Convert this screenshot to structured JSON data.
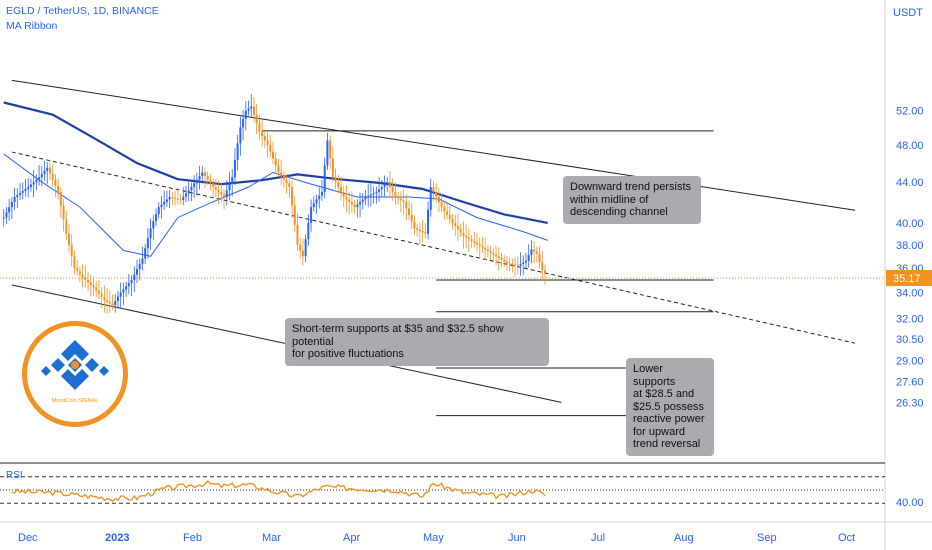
{
  "header": {
    "symbol": "EGLD / TetherUS, 1D, BINANCE",
    "indicator": "MA Ribbon"
  },
  "price_axis": {
    "unit": "USDT",
    "ticks": [
      "52.00",
      "48.00",
      "44.00",
      "40.00",
      "38.00",
      "36.00",
      "34.00",
      "32.00",
      "30.50",
      "29.00",
      "27.60",
      "26.30"
    ],
    "last_price": "35.17"
  },
  "rsi": {
    "label": "RSI",
    "tick": "40.00"
  },
  "time_axis": [
    "Dec",
    "2023",
    "Feb",
    "Mar",
    "Apr",
    "May",
    "Jun",
    "Jul",
    "Aug",
    "Sep",
    "Oct"
  ],
  "annotations": {
    "downtrend": [
      "Downward trend persists",
      "within midline of",
      "descending channel"
    ],
    "short_term": [
      "Short-term supports at $35 and $32.5 show potential",
      "for positive fluctuations"
    ],
    "lower": [
      "Lower supports",
      "at $28.5 and",
      "$25.5 possess",
      "reactive power",
      "for upward",
      "trend reversal"
    ]
  },
  "logo": {
    "text": "MondCoin SIGNAL"
  },
  "colors": {
    "candle": "#f39223",
    "ma_fast": "#2962ff",
    "ma_slow": "#1e3ea8",
    "axis_text": "#2962ff",
    "annotation_bg": "#a9abb0",
    "price_tag": "#f39223"
  },
  "chart_data": {
    "type": "candlestick",
    "title": "EGLD / TetherUS, 1D, BINANCE",
    "y_unit": "USDT",
    "price_series_daily_close": [
      [
        "2022-11-22",
        40.5
      ],
      [
        "2022-11-26",
        42.5
      ],
      [
        "2022-12-01",
        43.5
      ],
      [
        "2022-12-05",
        44.5
      ],
      [
        "2022-12-08",
        45.5
      ],
      [
        "2022-12-12",
        43.0
      ],
      [
        "2022-12-15",
        39.0
      ],
      [
        "2022-12-18",
        36.0
      ],
      [
        "2022-12-21",
        35.2
      ],
      [
        "2022-12-25",
        34.4
      ],
      [
        "2022-12-29",
        33.4
      ],
      [
        "2023-01-01",
        33.0
      ],
      [
        "2023-01-04",
        34.0
      ],
      [
        "2023-01-08",
        35.0
      ],
      [
        "2023-01-12",
        36.8
      ],
      [
        "2023-01-15",
        39.5
      ],
      [
        "2023-01-18",
        41.5
      ],
      [
        "2023-01-22",
        42.5
      ],
      [
        "2023-01-26",
        42.2
      ],
      [
        "2023-01-30",
        43.5
      ],
      [
        "2023-02-03",
        45.0
      ],
      [
        "2023-02-07",
        43.5
      ],
      [
        "2023-02-11",
        42.5
      ],
      [
        "2023-02-14",
        44.5
      ],
      [
        "2023-02-17",
        50.0
      ],
      [
        "2023-02-19",
        52.0
      ],
      [
        "2023-02-21",
        52.5
      ],
      [
        "2023-02-24",
        49.5
      ],
      [
        "2023-02-27",
        48.0
      ],
      [
        "2023-03-03",
        45.0
      ],
      [
        "2023-03-07",
        43.5
      ],
      [
        "2023-03-10",
        38.0
      ],
      [
        "2023-03-12",
        37.0
      ],
      [
        "2023-03-15",
        41.5
      ],
      [
        "2023-03-19",
        43.0
      ],
      [
        "2023-03-21",
        48.5
      ],
      [
        "2023-03-23",
        44.5
      ],
      [
        "2023-03-27",
        42.5
      ],
      [
        "2023-03-31",
        41.5
      ],
      [
        "2023-04-04",
        42.5
      ],
      [
        "2023-04-08",
        43.0
      ],
      [
        "2023-04-12",
        44.0
      ],
      [
        "2023-04-15",
        42.5
      ],
      [
        "2023-04-18",
        42.0
      ],
      [
        "2023-04-22",
        39.5
      ],
      [
        "2023-04-26",
        39.0
      ],
      [
        "2023-04-28",
        43.5
      ],
      [
        "2023-05-02",
        41.5
      ],
      [
        "2023-05-06",
        40.0
      ],
      [
        "2023-05-10",
        38.8
      ],
      [
        "2023-05-14",
        38.2
      ],
      [
        "2023-05-18",
        37.6
      ],
      [
        "2023-05-22",
        37.0
      ],
      [
        "2023-05-26",
        36.4
      ],
      [
        "2023-05-30",
        36.2
      ],
      [
        "2023-06-02",
        36.6
      ],
      [
        "2023-06-04",
        37.6
      ],
      [
        "2023-06-06",
        37.2
      ],
      [
        "2023-06-08",
        35.8
      ],
      [
        "2023-06-10",
        35.17
      ]
    ],
    "ma_fast": [
      [
        "2022-11-22",
        47.0
      ],
      [
        "2022-12-05",
        44.2
      ],
      [
        "2022-12-20",
        41.5
      ],
      [
        "2023-01-05",
        37.5
      ],
      [
        "2023-01-15",
        37.0
      ],
      [
        "2023-01-25",
        40.5
      ],
      [
        "2023-02-05",
        41.8
      ],
      [
        "2023-02-20",
        43.5
      ],
      [
        "2023-03-01",
        45.0
      ],
      [
        "2023-03-15",
        43.8
      ],
      [
        "2023-04-01",
        42.5
      ],
      [
        "2023-04-20",
        42.5
      ],
      [
        "2023-05-01",
        42.3
      ],
      [
        "2023-05-15",
        40.5
      ],
      [
        "2023-06-01",
        39.2
      ],
      [
        "2023-06-10",
        38.4
      ]
    ],
    "ma_slow": [
      [
        "2022-11-22",
        53.0
      ],
      [
        "2022-12-10",
        51.5
      ],
      [
        "2022-12-25",
        48.8
      ],
      [
        "2023-01-10",
        46.0
      ],
      [
        "2023-01-25",
        44.3
      ],
      [
        "2023-02-10",
        43.8
      ],
      [
        "2023-02-25",
        44.2
      ],
      [
        "2023-03-10",
        44.8
      ],
      [
        "2023-03-25",
        44.3
      ],
      [
        "2023-04-10",
        43.9
      ],
      [
        "2023-04-25",
        43.3
      ],
      [
        "2023-05-10",
        42.0
      ],
      [
        "2023-05-25",
        40.8
      ],
      [
        "2023-06-10",
        40.0
      ]
    ],
    "horizontal_levels": [
      49.6,
      35.0,
      32.5,
      28.5,
      25.5
    ],
    "trendlines": [
      {
        "name": "channel-upper",
        "from": [
          "2022-11-25",
          55.8
        ],
        "to": [
          "2023-10-01",
          41.2
        ],
        "style": "solid"
      },
      {
        "name": "channel-midline",
        "from": [
          "2022-11-25",
          47.2
        ],
        "to": [
          "2023-10-01",
          30.2
        ],
        "style": "dashed"
      },
      {
        "name": "channel-lower",
        "from": [
          "2022-11-25",
          34.6
        ],
        "to": [
          "2023-06-15",
          26.3
        ],
        "style": "solid"
      }
    ],
    "rsi_series": [
      [
        "2022-11-25",
        48
      ],
      [
        "2022-12-10",
        46
      ],
      [
        "2022-12-20",
        42
      ],
      [
        "2023-01-01",
        37
      ],
      [
        "2023-01-10",
        38
      ],
      [
        "2023-01-20",
        52
      ],
      [
        "2023-02-05",
        60
      ],
      [
        "2023-02-10",
        56
      ],
      [
        "2023-02-20",
        58
      ],
      [
        "2023-03-01",
        48
      ],
      [
        "2023-03-10",
        40
      ],
      [
        "2023-03-20",
        55
      ],
      [
        "2023-04-01",
        52
      ],
      [
        "2023-04-15",
        50
      ],
      [
        "2023-04-25",
        40
      ],
      [
        "2023-04-29",
        60
      ],
      [
        "2023-05-10",
        46
      ],
      [
        "2023-05-25",
        40
      ],
      [
        "2023-06-05",
        50
      ],
      [
        "2023-06-10",
        40
      ]
    ],
    "rsi_bands": [
      70,
      50,
      30
    ]
  }
}
